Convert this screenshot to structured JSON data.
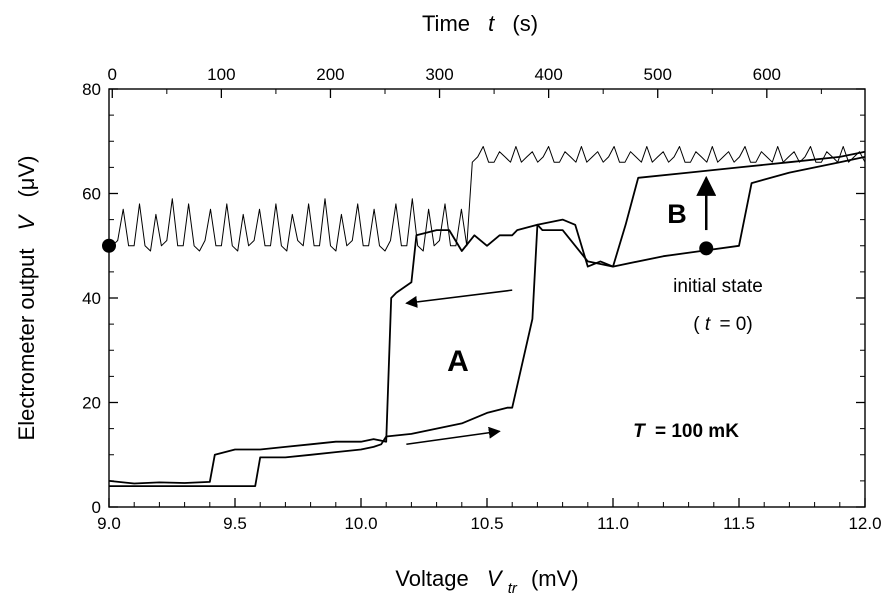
{
  "chart_data": {
    "type": "line",
    "xlabel": {
      "main": "Voltage",
      "symbol": "V",
      "sub": "tr",
      "unit": "(mV)"
    },
    "x2label": {
      "main": "Time",
      "symbol": "t",
      "unit": "(s)"
    },
    "ylabel": {
      "main": "Electrometer output",
      "symbol": "V",
      "unit": "(μV)"
    },
    "xlim": [
      9.0,
      12.0
    ],
    "x2lim": [
      -3,
      690
    ],
    "ylim": [
      0,
      80
    ],
    "x_ticks": [
      "9.0",
      "9.5",
      "10.0",
      "10.5",
      "11.0",
      "11.5",
      "12.0"
    ],
    "x_tick_values": [
      9.0,
      9.5,
      10.0,
      10.5,
      11.0,
      11.5,
      12.0
    ],
    "x2_ticks": [
      "0",
      "100",
      "200",
      "300",
      "400",
      "500",
      "600"
    ],
    "x2_tick_values": [
      0,
      100,
      200,
      300,
      400,
      500,
      600
    ],
    "y_ticks": [
      "0",
      "20",
      "40",
      "60",
      "80"
    ],
    "y_tick_values": [
      0,
      20,
      40,
      60,
      80
    ],
    "grid": false,
    "series": [
      {
        "axis": "bottom",
        "color": "#000000",
        "x": [
          9.0,
          9.1,
          9.2,
          9.3,
          9.4,
          9.42,
          9.5,
          9.6,
          9.7,
          9.8,
          9.9,
          10.0,
          10.05,
          10.1,
          10.12,
          10.14,
          10.2,
          10.22,
          10.3,
          10.35,
          10.4,
          10.45,
          10.5,
          10.55,
          10.6,
          10.62,
          10.7,
          10.72,
          10.8,
          10.9,
          11.0,
          11.2,
          11.35,
          11.5,
          11.55,
          11.7,
          11.9,
          12.0
        ],
        "y": [
          5,
          4.5,
          4.7,
          4.6,
          4.8,
          10,
          11,
          11,
          11.5,
          12,
          12.5,
          12.5,
          13,
          12.5,
          40,
          41,
          43,
          52,
          53,
          53,
          49,
          52,
          50,
          52,
          52,
          53,
          54,
          53,
          53,
          47,
          46,
          48,
          49,
          50,
          62,
          64,
          66,
          67
        ]
      },
      {
        "axis": "bottom",
        "color": "#000000",
        "x": [
          12.0,
          11.9,
          11.7,
          11.5,
          11.3,
          11.1,
          11.05,
          11.0,
          10.95,
          10.9,
          10.85,
          10.8,
          10.7,
          10.68,
          10.6,
          10.58,
          10.5,
          10.45,
          10.4,
          10.3,
          10.2,
          10.1,
          10.08,
          10.05,
          10.0,
          9.9,
          9.8,
          9.7,
          9.6,
          9.58,
          9.5,
          9.4,
          9.3,
          9.2,
          9.1,
          9.0
        ],
        "y": [
          68,
          67,
          66,
          65,
          64,
          63,
          54,
          46,
          47,
          46,
          54,
          55,
          54,
          36,
          19,
          19,
          18,
          17,
          16,
          15,
          14,
          13.5,
          12,
          11.5,
          11,
          10.5,
          10,
          9.5,
          9.5,
          4,
          4,
          4,
          4,
          4,
          4,
          4
        ]
      },
      {
        "axis": "top",
        "color": "#000000",
        "name": "",
        "x": [
          0,
          5,
          10,
          15,
          20,
          25,
          30,
          35,
          40,
          45,
          50,
          55,
          60,
          65,
          70,
          75,
          80,
          85,
          90,
          95,
          100,
          105,
          110,
          115,
          120,
          125,
          130,
          135,
          140,
          145,
          150,
          155,
          160,
          165,
          170,
          175,
          180,
          185,
          190,
          195,
          200,
          205,
          210,
          215,
          220,
          225,
          230,
          235,
          240,
          245,
          250,
          255,
          260,
          265,
          270,
          275,
          280,
          285,
          290,
          295,
          300,
          305,
          310,
          315,
          320,
          325,
          330,
          335,
          340,
          345,
          350,
          355,
          360,
          365,
          370,
          375,
          380,
          385,
          390,
          395,
          400,
          405,
          410,
          415,
          420,
          425,
          430,
          435,
          440,
          445,
          450,
          455,
          460,
          465,
          470,
          475,
          480,
          485,
          490,
          495,
          500,
          505,
          510,
          515,
          520,
          525,
          530,
          535,
          540,
          545,
          550,
          555,
          560,
          565,
          570,
          575,
          580,
          585,
          590,
          595,
          600,
          605,
          610,
          615,
          620,
          625,
          630,
          635,
          640,
          645,
          650,
          655,
          660,
          665,
          670,
          675,
          680,
          685,
          690
        ],
        "y": [
          50,
          51,
          57,
          50,
          50,
          58,
          50,
          49,
          56,
          50,
          51,
          59,
          50,
          50,
          58,
          50,
          49,
          51,
          57,
          50,
          50,
          58,
          50,
          49,
          56,
          50,
          51,
          57,
          50,
          50,
          58,
          50,
          49,
          56,
          51,
          50,
          58,
          50,
          50,
          59,
          50,
          49,
          56,
          50,
          51,
          58,
          50,
          50,
          57,
          50,
          49,
          51,
          58,
          50,
          50,
          59,
          50,
          49,
          57,
          50,
          51,
          58,
          50,
          50,
          57,
          50,
          66,
          67,
          69,
          66,
          66,
          68,
          67,
          66,
          69,
          66,
          67,
          68,
          66,
          67,
          69,
          66,
          66,
          68,
          67,
          66,
          69,
          66,
          67,
          68,
          66,
          67,
          69,
          66,
          66,
          68,
          67,
          66,
          69,
          66,
          67,
          68,
          66,
          67,
          69,
          66,
          66,
          68,
          67,
          66,
          69,
          66,
          67,
          68,
          66,
          67,
          69,
          66,
          66,
          68,
          67,
          66,
          69,
          66,
          67,
          68,
          66,
          67,
          69,
          66,
          66,
          68,
          67,
          66,
          69,
          66,
          67,
          68,
          66
        ]
      }
    ],
    "annotations": {
      "label_a": "A",
      "label_b": "B",
      "temperature_label": "T = 100 mK",
      "temperature_symbol": "T",
      "temperature_text": "= 100 mK",
      "initial_state_line1": "initial state",
      "initial_state_line2_open": "(",
      "initial_state_line2_symbol": "t",
      "initial_state_line2_rest": "= 0)"
    },
    "markers": [
      {
        "name": "initial-state-point",
        "axis": "bottom",
        "x": 11.37,
        "y": 49.5
      },
      {
        "name": "time-zero-point",
        "axis": "bottom",
        "x": 9.0,
        "y": 50
      }
    ],
    "arrows": [
      {
        "name": "upward-arrow-b",
        "axis": "bottom",
        "from": [
          11.37,
          53
        ],
        "to": [
          11.37,
          63
        ]
      },
      {
        "name": "arrow-left-upper",
        "axis": "bottom",
        "from": [
          10.6,
          41.5
        ],
        "to": [
          10.18,
          39
        ]
      },
      {
        "name": "arrow-right-lower",
        "axis": "bottom",
        "from": [
          10.18,
          12
        ],
        "to": [
          10.55,
          14.5
        ]
      }
    ]
  }
}
